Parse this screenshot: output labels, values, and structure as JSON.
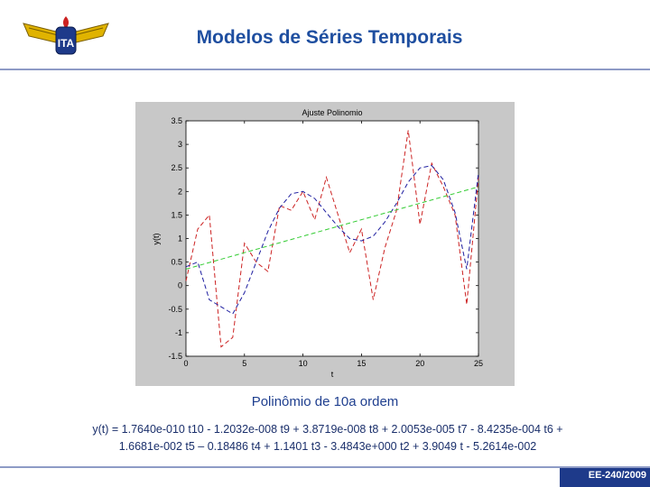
{
  "header": {
    "title": "Modelos de Séries Temporais",
    "logo_text": "ITA"
  },
  "colors": {
    "title": "#1f4fa0",
    "series_data": "#cc2222",
    "series_poly": "#1e1ea0",
    "series_linear": "#33cc33"
  },
  "chart_data": {
    "type": "line",
    "title": "Ajuste Polinomio",
    "xlabel": "t",
    "ylabel": "y(t)",
    "xlim": [
      0,
      25
    ],
    "ylim": [
      -1.5,
      3.5
    ],
    "xticks": [
      0,
      5,
      10,
      15,
      20,
      25
    ],
    "yticks": [
      -1.5,
      -1,
      -0.5,
      0,
      0.5,
      1,
      1.5,
      2,
      2.5,
      3,
      3.5
    ],
    "grid": false,
    "series": [
      {
        "style": "dashed",
        "color": "#cc2222",
        "x": [
          0,
          1,
          2,
          3,
          4,
          5,
          6,
          7,
          8,
          9,
          10,
          11,
          12,
          13,
          14,
          15,
          16,
          17,
          18,
          19,
          20,
          21,
          22,
          23,
          24,
          25
        ],
        "y": [
          0.1,
          1.2,
          1.5,
          -1.3,
          -1.1,
          0.9,
          0.5,
          0.3,
          1.7,
          1.6,
          2.0,
          1.4,
          2.3,
          1.5,
          0.7,
          1.2,
          -0.3,
          0.8,
          1.6,
          3.3,
          1.3,
          2.6,
          2.1,
          1.5,
          -0.4,
          2.3
        ]
      },
      {
        "style": "dashed",
        "color": "#1e1ea0",
        "x": [
          0,
          1,
          2,
          3,
          4,
          5,
          6,
          7,
          8,
          9,
          10,
          11,
          12,
          13,
          14,
          15,
          16,
          17,
          18,
          19,
          20,
          21,
          22,
          23,
          24,
          25
        ],
        "y": [
          0.4,
          0.5,
          -0.3,
          -0.45,
          -0.6,
          -0.15,
          0.5,
          1.15,
          1.65,
          1.95,
          2.0,
          1.85,
          1.55,
          1.25,
          1.0,
          0.95,
          1.05,
          1.35,
          1.75,
          2.2,
          2.5,
          2.55,
          2.25,
          1.55,
          0.35,
          2.4
        ]
      },
      {
        "style": "dashed",
        "color": "#33cc33",
        "x": [
          0,
          25
        ],
        "y": [
          0.35,
          2.1
        ]
      }
    ]
  },
  "caption": "Polinômio de 10a ordem",
  "formula": {
    "line1": "y(t) = 1.7640e-010 t10 - 1.2032e-008 t9 + 3.8719e-008 t8 + 2.0053e-005 t7 - 8.4235e-004 t6 +",
    "line2": "1.6681e-002 t5 – 0.18486 t4 + 1.1401 t3 - 3.4843e+000 t2 + 3.9049 t - 5.2614e-002"
  },
  "footer": "EE-240/2009"
}
